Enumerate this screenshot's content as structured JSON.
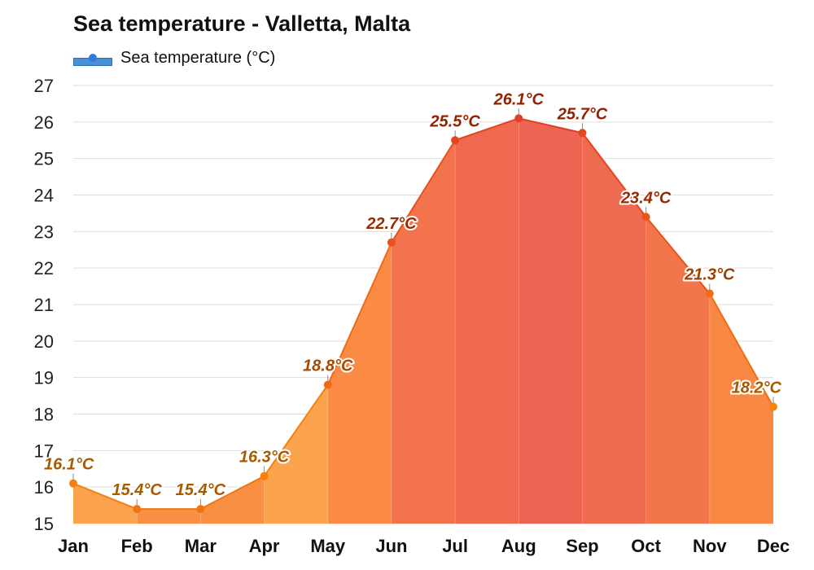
{
  "title": "Sea temperature - Valletta, Malta",
  "legend": {
    "label": "Sea temperature (°C)",
    "color": "#4a90d9"
  },
  "chart_data": {
    "type": "area",
    "title": "Sea temperature - Valletta, Malta",
    "categories": [
      "Jan",
      "Feb",
      "Mar",
      "Apr",
      "May",
      "Jun",
      "Jul",
      "Aug",
      "Sep",
      "Oct",
      "Nov",
      "Dec"
    ],
    "series": [
      {
        "name": "Sea temperature (°C)",
        "values": [
          16.1,
          15.4,
          15.4,
          16.3,
          18.8,
          22.7,
          25.5,
          26.1,
          25.7,
          23.4,
          21.3,
          18.2
        ],
        "data_labels": [
          "16.1°C",
          "15.4°C",
          "15.4°C",
          "16.3°C",
          "18.8°C",
          "22.7°C",
          "25.5°C",
          "26.1°C",
          "25.7°C",
          "23.4°C",
          "21.3°C",
          "18.2°C"
        ]
      }
    ],
    "ylim": [
      15,
      27
    ],
    "yticks": [
      15,
      16,
      17,
      18,
      19,
      20,
      21,
      22,
      23,
      24,
      25,
      26,
      27
    ],
    "grid": true,
    "legend_position": "top-left",
    "fill_colors": [
      "#fba44d",
      "#f98f43",
      "#f98f43",
      "#fba44d",
      "#fa8a44",
      "#f2734c",
      "#ee6950",
      "#ec6552",
      "#ee6a50",
      "#f3754b",
      "#f98845",
      "#fb9f4b"
    ],
    "line_colors": [
      "#f4800e",
      "#f07410",
      "#f07410",
      "#f4800e",
      "#f06a16",
      "#e85020",
      "#e44420",
      "#e23e22",
      "#e44620",
      "#ea541c",
      "#f06c16",
      "#f4840e"
    ],
    "label_colors": [
      "#a85a00",
      "#a85a00",
      "#a85a00",
      "#a85a00",
      "#a84a00",
      "#9a2a00",
      "#942200",
      "#942200",
      "#942200",
      "#9a2a00",
      "#a04000",
      "#a85a00"
    ]
  }
}
